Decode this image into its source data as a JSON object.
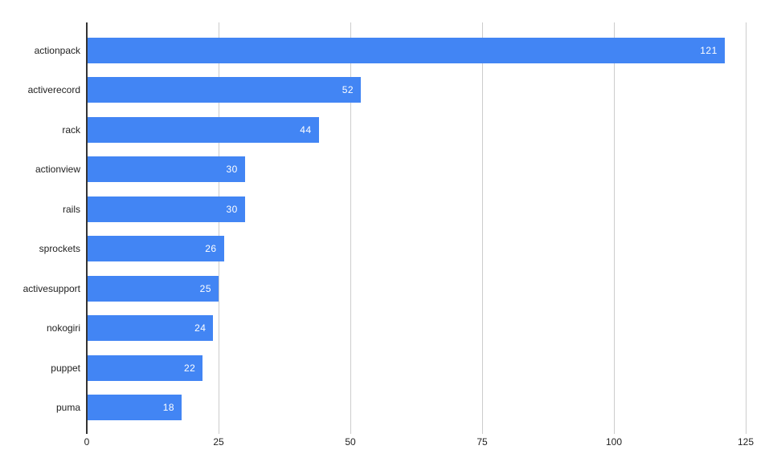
{
  "chart_data": {
    "type": "bar",
    "orientation": "horizontal",
    "title": "",
    "xlabel": "",
    "ylabel": "",
    "categories": [
      "actionpack",
      "activerecord",
      "rack",
      "actionview",
      "rails",
      "sprockets",
      "activesupport",
      "nokogiri",
      "puppet",
      "puma"
    ],
    "values": [
      121,
      52,
      44,
      30,
      30,
      26,
      25,
      24,
      22,
      18
    ],
    "xlim": [
      0,
      125
    ],
    "xticks": [
      0,
      25,
      50,
      75,
      100,
      125
    ],
    "xtick_labels": [
      "0",
      "25",
      "50",
      "75",
      "100",
      "125"
    ],
    "grid": true,
    "legend": "none",
    "colors": {
      "bar": "#4285f4",
      "annotation_text": "#ffffff",
      "gridline": "#cccccc",
      "baseline": "#333333",
      "axis_label": "#222222",
      "background": "#ffffff"
    }
  }
}
